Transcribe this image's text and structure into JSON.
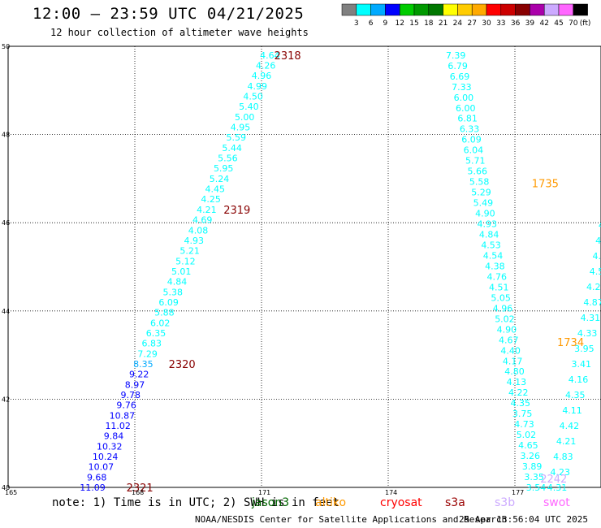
{
  "header": {
    "title": "12:00 — 23:59 UTC 04/21/2025",
    "subtitle": "12 hour collection of altimeter wave heights"
  },
  "colorbar": {
    "labels": [
      "3",
      "6",
      "9",
      "12",
      "15",
      "18",
      "21",
      "24",
      "27",
      "30",
      "33",
      "36",
      "39",
      "42",
      "45",
      "70"
    ],
    "unit": "(ft)",
    "colors": [
      "#808080",
      "#00ffff",
      "#00aaff",
      "#0000ff",
      "#00cc00",
      "#009900",
      "#007700",
      "#ffff00",
      "#ffcc00",
      "#ffaa00",
      "#ff0000",
      "#cc0000",
      "#880000",
      "#aa00aa",
      "#ccaaff",
      "#ff66ff",
      "#000000"
    ]
  },
  "footer": {
    "note": "note:  1) Time is in UTC; 2) SWH is in feet",
    "satellites": [
      {
        "name": "jason3",
        "color": "#006600"
      },
      {
        "name": "altiko",
        "color": "#ff9900"
      },
      {
        "name": "cryosat",
        "color": "#ff0000"
      },
      {
        "name": "s3a",
        "color": "#990000"
      },
      {
        "name": "s3b",
        "color": "#ccaaff"
      },
      {
        "name": "swot",
        "color": "#ff66ff"
      }
    ],
    "source": "NOAA/NESDIS Center for Satellite Applications and Research",
    "timestamp": "25 Apr 13:56:04 UTC 2025"
  },
  "chart_data": {
    "type": "scatter",
    "xlim": [
      165,
      180
    ],
    "ylim": [
      40,
      50
    ],
    "x_ticks": [
      165,
      168,
      171,
      174,
      177
    ],
    "y_ticks": [
      40,
      42,
      44,
      46,
      48,
      50
    ],
    "grid": true,
    "tracks": [
      {
        "lon_start": 171.2,
        "lon_end": 167.0,
        "values": [
          "4.64",
          "4.26",
          "4.96",
          "4.99",
          "4.50",
          "5.40",
          "5.00",
          "4.95",
          "5.59",
          "5.44",
          "5.56",
          "5.95",
          "5.24",
          "4.45",
          "4.25",
          "4.21",
          "4.69",
          "4.08",
          "4.93",
          "5.21",
          "5.12",
          "5.01",
          "4.84",
          "5.38",
          "6.09",
          "5.88",
          "6.02",
          "6.35",
          "6.83",
          "7.29",
          "8.35",
          "9.22",
          "8.97",
          "9.78",
          "9.76",
          "10.87",
          "11.02",
          "9.84",
          "10.32",
          "10.24",
          "10.07",
          "9.68",
          "11.09"
        ],
        "colors": [
          "#00ffff",
          "#00ffff",
          "#00ffff",
          "#00ffff",
          "#00ffff",
          "#00ffff",
          "#00ffff",
          "#00ffff",
          "#00ffff",
          "#00ffff",
          "#00ffff",
          "#00ffff",
          "#00ffff",
          "#00ffff",
          "#00ffff",
          "#00ffff",
          "#00ffff",
          "#00ffff",
          "#00ffff",
          "#00ffff",
          "#00ffff",
          "#00ffff",
          "#00ffff",
          "#00ffff",
          "#00ffff",
          "#00ffff",
          "#00ffff",
          "#00ffff",
          "#00ffff",
          "#00ffff",
          "#00aaff",
          "#0000ff",
          "#0000ff",
          "#0000ff",
          "#0000ff",
          "#0000ff",
          "#0000ff",
          "#0000ff",
          "#0000ff",
          "#0000ff",
          "#0000ff",
          "#0000ff",
          "#0000ff"
        ]
      },
      {
        "lon_start": 175.6,
        "lon_end": 177.5,
        "values": [
          "7.39",
          "6.79",
          "6.69",
          "7.33",
          "6.00",
          "6.00",
          "6.81",
          "6.33",
          "6.09",
          "6.04",
          "5.71",
          "5.66",
          "5.58",
          "5.29",
          "5.49",
          "4.90",
          "4.93",
          "4.84",
          "4.53",
          "4.54",
          "4.38",
          "4.76",
          "4.51",
          "5.05",
          "4.96",
          "5.02",
          "4.90",
          "4.67",
          "4.40",
          "4.17",
          "4.80",
          "4.13",
          "4.22",
          "4.35",
          "3.75",
          "4.73",
          "5.02",
          "4.65",
          "3.26",
          "3.89",
          "3.35",
          "3.54"
        ],
        "colors": [
          "#00ffff",
          "#00ffff",
          "#00ffff",
          "#00ffff",
          "#00ffff",
          "#00ffff",
          "#00ffff",
          "#00ffff",
          "#00ffff",
          "#00ffff",
          "#00ffff",
          "#00ffff",
          "#00ffff",
          "#00ffff",
          "#00ffff",
          "#00ffff",
          "#00ffff",
          "#00ffff",
          "#00ffff",
          "#00ffff",
          "#00ffff",
          "#00ffff",
          "#00ffff",
          "#00ffff",
          "#00ffff",
          "#00ffff",
          "#00ffff",
          "#00ffff",
          "#00ffff",
          "#00ffff",
          "#00ffff",
          "#00ffff",
          "#00ffff",
          "#00ffff",
          "#00ffff",
          "#00ffff",
          "#00ffff",
          "#00ffff",
          "#00ffff",
          "#00ffff",
          "#00ffff",
          "#00ffff"
        ]
      },
      {
        "lon_start": 180.0,
        "lon_end": 178.0,
        "values": [
          "4",
          "5",
          "4.6",
          "4.6",
          "3.59",
          "5.61",
          "4.10",
          "3.84",
          "4.37",
          "4.88",
          "4.93",
          "4.52",
          "4.06",
          "4.37",
          "4.53",
          "4.24",
          "4.87",
          "4.31",
          "4.33",
          "3.95",
          "3.41",
          "4.16",
          "4.35",
          "4.11",
          "4.42",
          "4.21",
          "4.83",
          "4.23",
          "4.31"
        ],
        "colors": [
          "#00ffff",
          "#00ffff",
          "#00ffff",
          "#00ffff",
          "#00ffff",
          "#00ffff",
          "#00ffff",
          "#00ffff",
          "#00ffff",
          "#00ffff",
          "#00ffff",
          "#00ffff",
          "#00ffff",
          "#00ffff",
          "#00ffff",
          "#00ffff",
          "#00ffff",
          "#00ffff",
          "#00ffff",
          "#00ffff",
          "#00ffff",
          "#00ffff",
          "#00ffff",
          "#00ffff",
          "#00ffff",
          "#00ffff",
          "#00ffff",
          "#00ffff",
          "#00ffff"
        ]
      }
    ],
    "pass_labels": [
      {
        "text": "2318",
        "lon": 171.3,
        "lat": 49.8,
        "color": "#880000"
      },
      {
        "text": "2319",
        "lon": 170.1,
        "lat": 46.3,
        "color": "#880000"
      },
      {
        "text": "2320",
        "lon": 168.8,
        "lat": 42.8,
        "color": "#880000"
      },
      {
        "text": "2321",
        "lon": 167.8,
        "lat": 40.0,
        "color": "#880000"
      },
      {
        "text": "1735",
        "lon": 177.4,
        "lat": 46.9,
        "color": "#ff9900"
      },
      {
        "text": "1734",
        "lon": 178.0,
        "lat": 43.3,
        "color": "#ff9900"
      },
      {
        "text": "224",
        "lon": 179.1,
        "lat": 43.2,
        "color": "#ccaaff"
      },
      {
        "text": "2242",
        "lon": 177.6,
        "lat": 40.2,
        "color": "#ccaaff"
      },
      {
        "text": "1",
        "lon": 179.8,
        "lat": 39.95,
        "color": "#ff9900"
      }
    ]
  }
}
